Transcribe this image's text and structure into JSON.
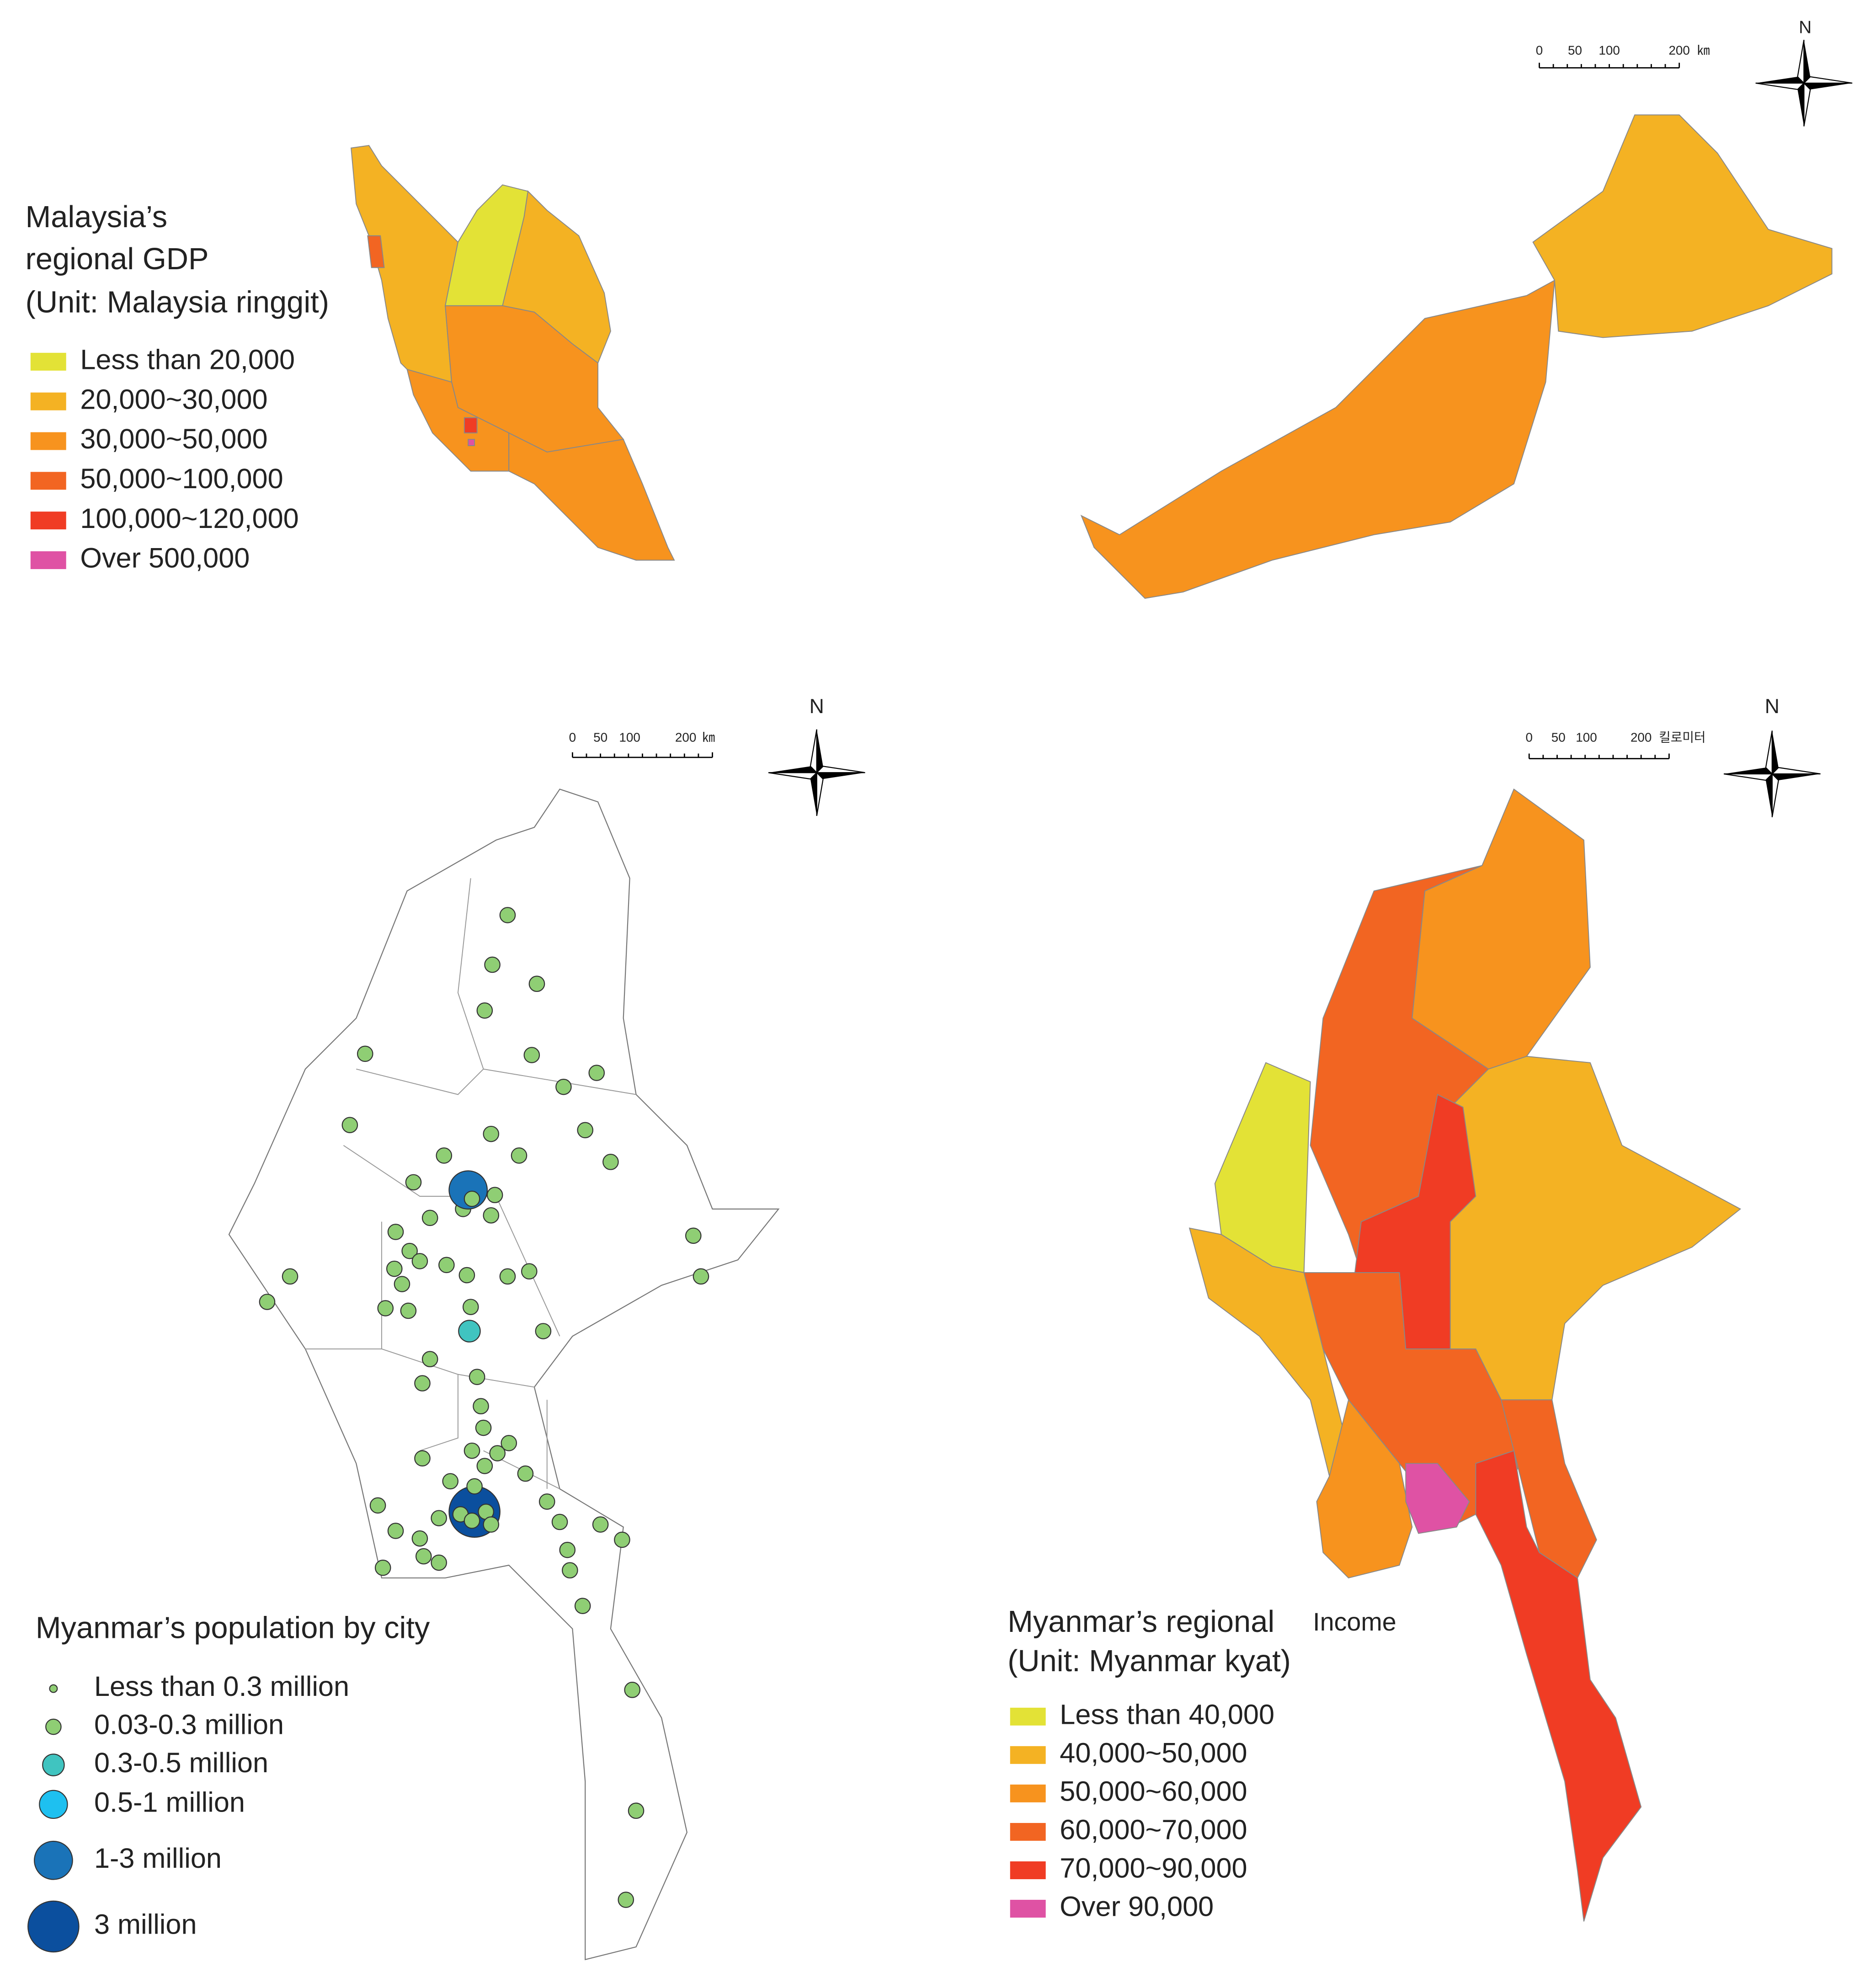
{
  "malaysia": {
    "title": [
      "Malaysia’s",
      "regional GDP",
      "(Unit: Malaysia ringgit)"
    ],
    "legend": [
      {
        "label": "Less than 20,000",
        "color": "#e3e236"
      },
      {
        "label": "20,000~30,000",
        "color": "#f4b223"
      },
      {
        "label": "30,000~50,000",
        "color": "#f7931e"
      },
      {
        "label": "50,000~100,000",
        "color": "#f26522"
      },
      {
        "label": "100,000~120,000",
        "color": "#f03c24"
      },
      {
        "label": "Over 500,000",
        "color": "#df52a4"
      }
    ],
    "scale_bar": {
      "labels": [
        "0",
        "50",
        "100",
        "200"
      ],
      "unit": "㎞"
    },
    "north": "N"
  },
  "myanmar_population": {
    "title": "Myanmar’s population by city",
    "legend": [
      {
        "label": "Less than 0.3 million",
        "color": "#8fce74"
      },
      {
        "label": "0.03-0.3 million",
        "color": "#8fce74"
      },
      {
        "label": "0.3-0.5 million",
        "color": "#40c4c0"
      },
      {
        "label": "0.5-1 million",
        "color": "#1ec0f0"
      },
      {
        "label": "1-3 million",
        "color": "#1a73b8"
      },
      {
        "label": "3 million",
        "color": "#0b4f9e"
      }
    ],
    "scale_bar": {
      "labels": [
        "0",
        "50",
        "100",
        "200"
      ],
      "unit": "㎞"
    },
    "north": "N"
  },
  "myanmar_income": {
    "title": [
      "Myanmar’s regional",
      "Income",
      "(Unit: Myanmar kyat)"
    ],
    "legend": [
      {
        "label": "Less than 40,000",
        "color": "#e3e236"
      },
      {
        "label": "40,000~50,000",
        "color": "#f4b223"
      },
      {
        "label": "50,000~60,000",
        "color": "#f7931e"
      },
      {
        "label": "60,000~70,000",
        "color": "#f26522"
      },
      {
        "label": "70,000~90,000",
        "color": "#f03c24"
      },
      {
        "label": "Over 90,000",
        "color": "#df52a4"
      }
    ],
    "scale_bar": {
      "labels": [
        "0",
        "50",
        "100",
        "200"
      ],
      "unit": "킬로미터"
    },
    "north": "N"
  }
}
